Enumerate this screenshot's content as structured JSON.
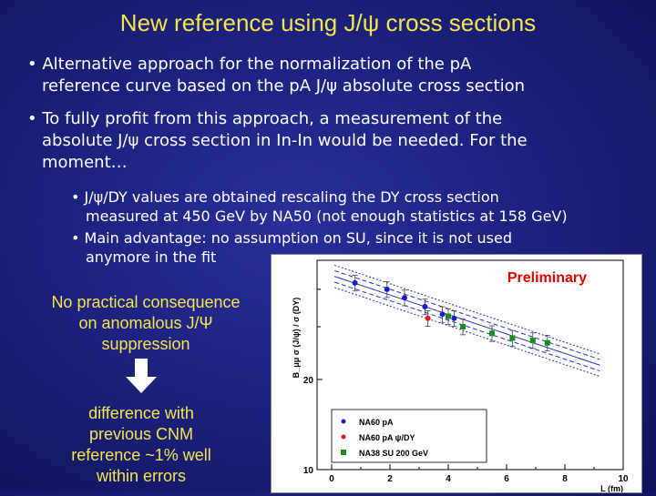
{
  "slide": {
    "title": "New reference using J/ψ cross sections",
    "bullet1_line1": "• Alternative approach for the normalization of the pA",
    "bullet1_line2": "reference curve based on the pA J/ψ absolute cross section",
    "bullet2_line1": "• To fully profit from this approach, a measurement of the",
    "bullet2_line2": "absolute J/ψ cross section in In-In would be needed. For the",
    "bullet2_line3": "moment…",
    "sub1_line1": "• J/ψ/DY values are obtained rescaling the DY cross section",
    "sub1_line2": "measured at 450 GeV by NA50 (not enough statistics at 158 GeV)",
    "sub2_line1": "• Main advantage: no assumption on SU, since it is not used",
    "sub2_line2": "anymore in the fit",
    "note1_line1": "No practical consequence",
    "note1_line2": "on anomalous J/Ψ",
    "note1_line3": "suppression",
    "note2_line1": "difference with",
    "note2_line2": "previous CNM",
    "note2_line3": "reference ~1% well",
    "note2_line4": "within errors"
  },
  "colors": {
    "title": "#f2e64a",
    "body_text": "#ffffff",
    "preliminary": "#e00000"
  },
  "chart_data": {
    "type": "scatter",
    "label": "Preliminary",
    "xlabel": "L (fm)",
    "ylabel": "B_μμ σ (J/ψ) / σ (DY)",
    "xlim": [
      -0.5,
      10
    ],
    "ylim": [
      10,
      50
    ],
    "y_scale": "log",
    "x_ticks": [
      "0",
      "2",
      "4",
      "6",
      "8",
      "10"
    ],
    "y_ticks": [
      "10",
      "20"
    ],
    "legend_position": "bottom-left",
    "series": [
      {
        "name": "NA60 pA",
        "color": "#1a1acc",
        "marker": "circle",
        "x": [
          0.8,
          1.9,
          2.5,
          3.2,
          3.8,
          4.2
        ],
        "y": [
          42,
          40,
          37.5,
          35,
          33,
          32
        ]
      },
      {
        "name": "NA60 pA ψ/DY",
        "color": "#dd1a1a",
        "marker": "circle",
        "x": [
          3.3
        ],
        "y": [
          32
        ]
      },
      {
        "name": "NA38 SU 200 GeV",
        "color": "#1a8c1a",
        "marker": "square",
        "x": [
          4.0,
          4.5,
          5.5,
          6.2,
          6.9,
          7.4
        ],
        "y": [
          32.5,
          30,
          28.5,
          27.5,
          27,
          26.5
        ]
      }
    ]
  }
}
